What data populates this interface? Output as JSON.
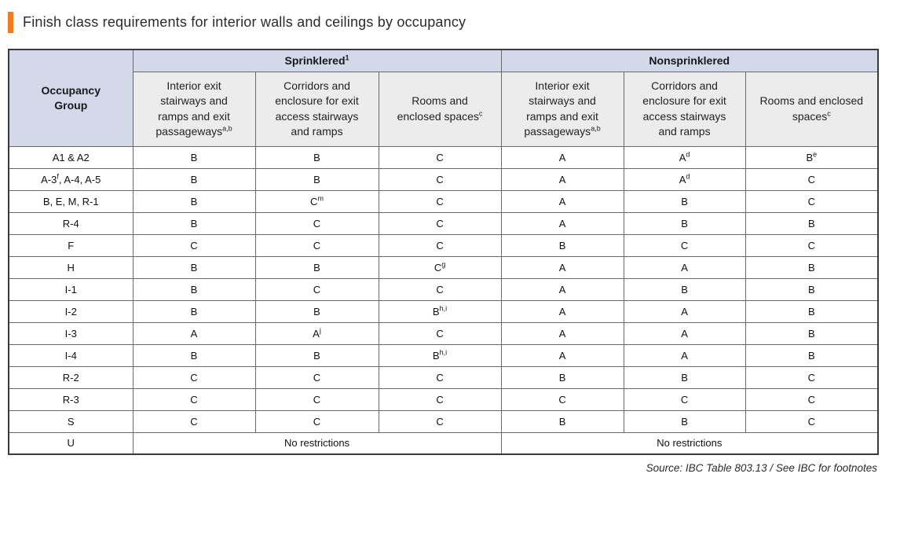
{
  "title": "Finish class requirements for interior walls and ceilings by occupancy",
  "colors": {
    "accent_orange": "#F47A20",
    "group_header_bg": "#D3D9E8",
    "sub_header_bg": "#ECECEC",
    "border_outer": "#3A3A3A",
    "border_inner": "#686868"
  },
  "table": {
    "corner_header": "Occupancy\nGroup",
    "group_headers": [
      "Sprinklered{1}",
      "Nonsprinklered"
    ],
    "sub_headers": [
      "Interior exit stairways and ramps and exit passageways{a,b}",
      "Corridors and enclosure for exit access stairways and ramps",
      "Rooms and enclosed spaces{c}",
      "Interior exit stairways and ramps and exit passageways{a,b}",
      "Corridors and enclosure for exit access stairways and ramps",
      "Rooms and enclosed spaces{c}"
    ],
    "rows": [
      {
        "group": "A1 & A2",
        "cells": [
          "B",
          "B",
          "C",
          "A",
          "A{d}",
          "B{e}"
        ]
      },
      {
        "group": "A-3{f}, A-4, A-5",
        "cells": [
          "B",
          "B",
          "C",
          "A",
          "A{d}",
          "C"
        ]
      },
      {
        "group": "B, E, M, R-1",
        "cells": [
          "B",
          "C{m}",
          "C",
          "A",
          "B",
          "C"
        ]
      },
      {
        "group": "R-4",
        "cells": [
          "B",
          "C",
          "C",
          "A",
          "B",
          "B"
        ]
      },
      {
        "group": "F",
        "cells": [
          "C",
          "C",
          "C",
          "B",
          "C",
          "C"
        ]
      },
      {
        "group": "H",
        "cells": [
          "B",
          "B",
          "C{g}",
          "A",
          "A",
          "B"
        ]
      },
      {
        "group": "I-1",
        "cells": [
          "B",
          "C",
          "C",
          "A",
          "B",
          "B"
        ]
      },
      {
        "group": "I-2",
        "cells": [
          "B",
          "B",
          "B{h,i}",
          "A",
          "A",
          "B"
        ]
      },
      {
        "group": "I-3",
        "cells": [
          "A",
          "A{j}",
          "C",
          "A",
          "A",
          "B"
        ]
      },
      {
        "group": "I-4",
        "cells": [
          "B",
          "B",
          "B{h,i}",
          "A",
          "A",
          "B"
        ]
      },
      {
        "group": "R-2",
        "cells": [
          "C",
          "C",
          "C",
          "B",
          "B",
          "C"
        ]
      },
      {
        "group": "R-3",
        "cells": [
          "C",
          "C",
          "C",
          "C",
          "C",
          "C"
        ]
      },
      {
        "group": "S",
        "cells": [
          "C",
          "C",
          "C",
          "B",
          "B",
          "C"
        ]
      },
      {
        "group": "U",
        "span_cells": [
          "No restrictions",
          "No restrictions"
        ]
      }
    ]
  },
  "source": "Source: IBC Table 803.13 / See IBC for footnotes"
}
